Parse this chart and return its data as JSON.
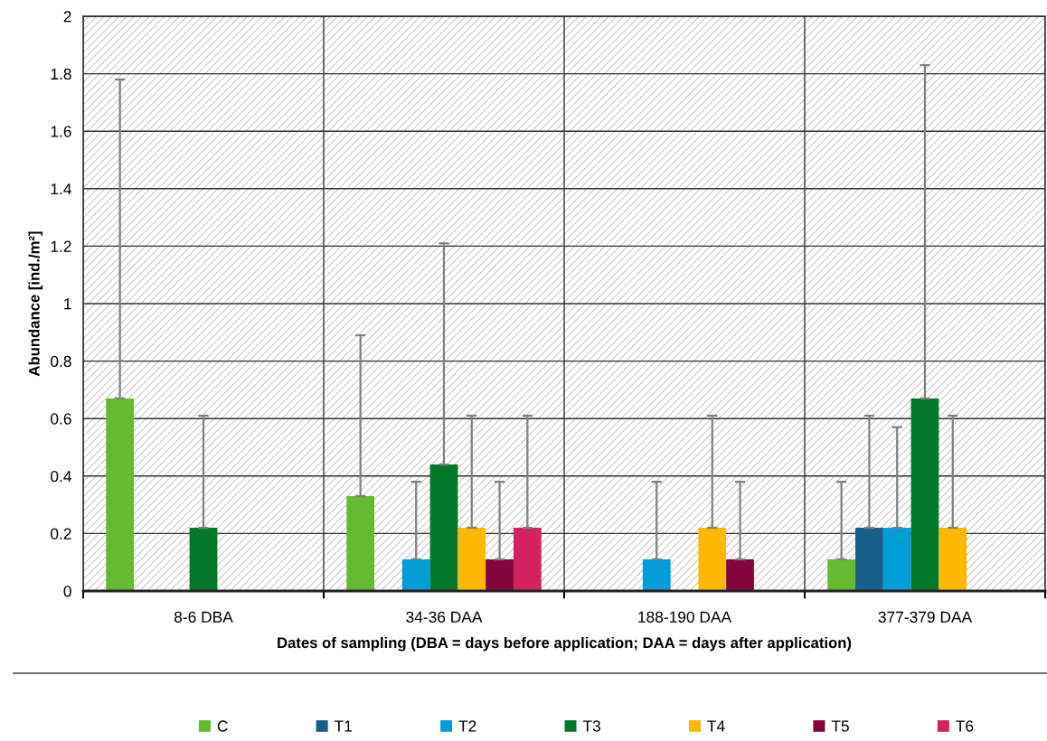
{
  "chart_data": {
    "type": "bar",
    "categories": [
      "8-6 DBA",
      "34-36 DAA",
      "188-190 DAA",
      "377-379 DAA"
    ],
    "series": [
      {
        "name": "C",
        "color": "#66b932",
        "values": [
          0.67,
          0.33,
          null,
          0.11
        ],
        "errors": [
          [
            0.67,
            1.78
          ],
          [
            0.33,
            0.89
          ],
          null,
          [
            0.11,
            0.38
          ]
        ]
      },
      {
        "name": "T1",
        "color": "#175e88",
        "values": [
          null,
          null,
          null,
          0.22
        ],
        "errors": [
          null,
          null,
          null,
          [
            0.22,
            0.61
          ]
        ]
      },
      {
        "name": "T2",
        "color": "#009dd8",
        "values": [
          null,
          0.11,
          0.11,
          0.22
        ],
        "errors": [
          null,
          [
            0.11,
            0.38
          ],
          [
            0.11,
            0.38
          ],
          [
            0.22,
            0.57
          ]
        ]
      },
      {
        "name": "T3",
        "color": "#03782a",
        "values": [
          0.22,
          0.44,
          null,
          0.67
        ],
        "errors": [
          [
            0.22,
            0.61
          ],
          [
            0.44,
            1.21
          ],
          null,
          [
            0.67,
            1.83
          ]
        ]
      },
      {
        "name": "T4",
        "color": "#fbba00",
        "values": [
          null,
          0.22,
          0.22,
          0.22
        ],
        "errors": [
          null,
          [
            0.22,
            0.61
          ],
          [
            0.22,
            0.61
          ],
          [
            0.22,
            0.61
          ]
        ]
      },
      {
        "name": "T5",
        "color": "#82053c",
        "values": [
          null,
          0.11,
          0.11,
          null
        ],
        "errors": [
          null,
          [
            0.11,
            0.38
          ],
          [
            0.11,
            0.38
          ],
          null
        ]
      },
      {
        "name": "T6",
        "color": "#d22260",
        "values": [
          null,
          0.22,
          null,
          null
        ],
        "errors": [
          null,
          [
            0.22,
            0.61
          ],
          null,
          null
        ]
      }
    ],
    "ylim": [
      0,
      2
    ],
    "yticks": [
      0,
      0.2,
      0.4,
      0.6,
      0.8,
      1,
      1.2,
      1.4,
      1.6,
      1.8,
      2
    ],
    "xlabel": "Dates of sampling (DBA = days before application; DAA = days after application)",
    "ylabel": "Abundance [ind./m²]",
    "grid": true,
    "legend": "bottom"
  }
}
